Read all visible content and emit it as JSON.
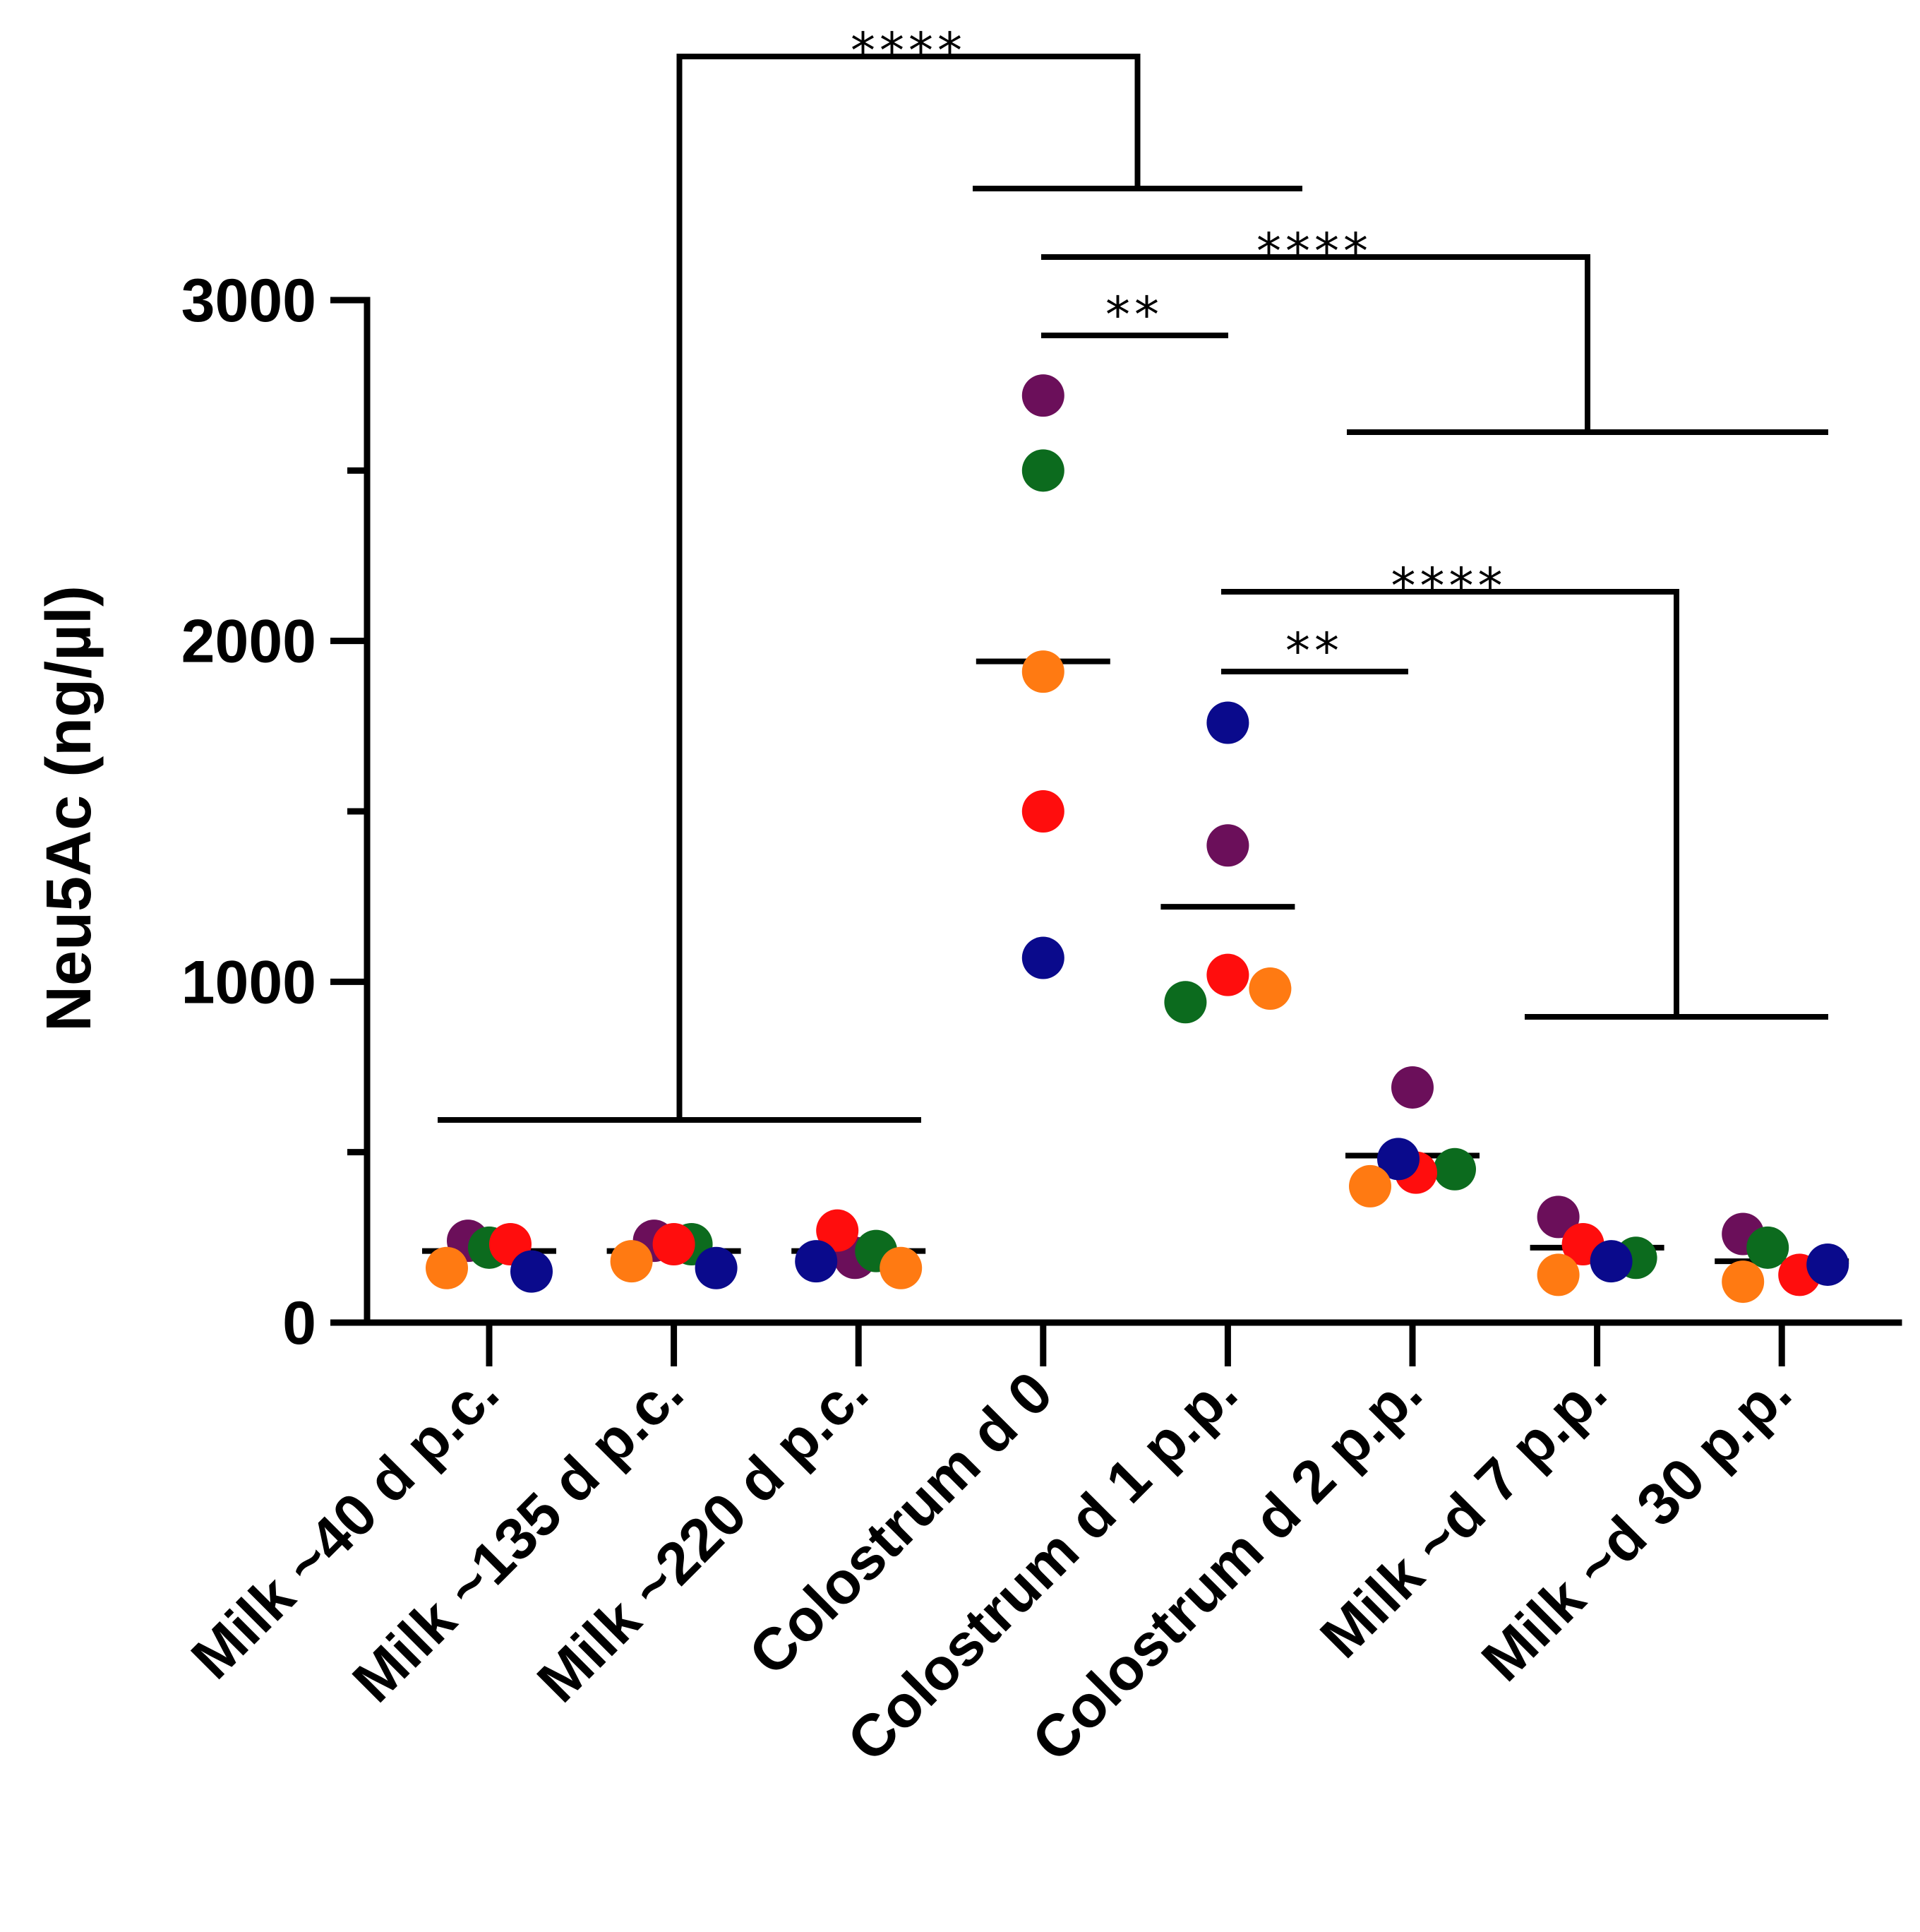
{
  "chart_data": {
    "type": "scatter",
    "title": "",
    "xlabel": "",
    "ylabel": "Neu5Ac (ng/µl)",
    "ylim": [
      0,
      3000
    ],
    "y_ticks": [
      0,
      1000,
      2000,
      3000
    ],
    "y_tick_labels": [
      "0",
      "1000",
      "2000",
      "3000"
    ],
    "y_minor_ticks": [
      500,
      1500,
      2500
    ],
    "grid": false,
    "categories": [
      "Milk ~40 d p.c.",
      "Milk ~135 d p.c.",
      "Milk ~220 d p.c.",
      "Colostrum d 0",
      "Colostrum d 1 p.p.",
      "Colostrum d 2 p.p.",
      "Milk ~d 7 p.p.",
      "Milk ~d 30 p.p."
    ],
    "colors": {
      "purple": "#6b0f5a",
      "green": "#0c6b1e",
      "red": "#ff0d0d",
      "blue": "#0a0a8c",
      "orange": "#ff7a12"
    },
    "series": [
      {
        "name": "purple",
        "values": [
          240,
          240,
          190,
          2720,
          1400,
          690,
          310,
          260
        ]
      },
      {
        "name": "green",
        "values": [
          220,
          230,
          210,
          2500,
          940,
          450,
          190,
          220
        ]
      },
      {
        "name": "red",
        "values": [
          230,
          230,
          270,
          1500,
          1020,
          440,
          230,
          140
        ]
      },
      {
        "name": "blue",
        "values": [
          150,
          160,
          180,
          1070,
          1760,
          480,
          180,
          170
        ]
      },
      {
        "name": "orange",
        "values": [
          160,
          180,
          160,
          1910,
          980,
          400,
          140,
          120
        ]
      }
    ],
    "means": [
      210,
      210,
      210,
      1940,
      1220,
      490,
      220,
      180
    ],
    "significance": [
      {
        "label": "****",
        "left_groups": [
          0,
          1,
          2
        ],
        "right_groups": [
          3,
          4
        ]
      },
      {
        "label": "****",
        "left_groups": [
          3
        ],
        "right_groups": [
          5,
          6,
          7
        ]
      },
      {
        "label": "**",
        "left_groups": [
          3
        ],
        "right_groups": [
          4
        ]
      },
      {
        "label": "****",
        "left_groups": [
          4
        ],
        "right_groups": [
          6,
          7
        ]
      },
      {
        "label": "**",
        "left_groups": [
          4
        ],
        "right_groups": [
          5
        ]
      }
    ]
  }
}
